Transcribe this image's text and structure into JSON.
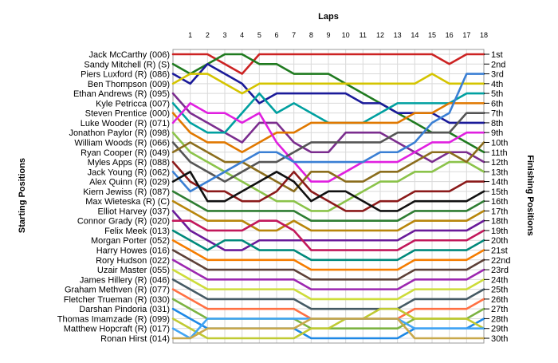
{
  "chart_data": {
    "type": "line",
    "title": "",
    "xlabel": "Laps",
    "ylabel_left": "Starting Positions",
    "ylabel_right": "Finishing Positions",
    "laps": [
      0,
      1,
      2,
      3,
      4,
      5,
      6,
      7,
      8,
      9,
      10,
      11,
      12,
      13,
      14,
      15,
      16,
      17,
      18
    ],
    "lap_tick_labels": [
      "1",
      "2",
      "3",
      "4",
      "5",
      "6",
      "7",
      "8",
      "9",
      "10",
      "11",
      "12",
      "13",
      "14",
      "15",
      "16",
      "17",
      "18"
    ],
    "position_range": [
      1,
      30
    ],
    "finishing_labels": [
      "1st",
      "2nd",
      "3rd",
      "4th",
      "5th",
      "6th",
      "7th",
      "8th",
      "9th",
      "10th",
      "11th",
      "12th",
      "13th",
      "14th",
      "15th",
      "16th",
      "17th",
      "18th",
      "19th",
      "20th",
      "21st",
      "22nd",
      "23rd",
      "24th",
      "25th",
      "26th",
      "27th",
      "28th",
      "29th",
      "30th"
    ],
    "grid": true,
    "series": [
      {
        "name": "Jack McCarthy (006)",
        "color": "#cc2222",
        "values": [
          1,
          1,
          1,
          2,
          3,
          1,
          1,
          1,
          1,
          1,
          1,
          1,
          1,
          1,
          1,
          1,
          2,
          1,
          1
        ]
      },
      {
        "name": "Sandy Mitchell (R) (S)",
        "color": "#1f7a1f",
        "values": [
          2,
          3,
          2,
          1,
          1,
          2,
          2,
          3,
          3,
          3,
          4,
          5,
          6,
          7,
          8,
          9,
          9,
          10,
          11
        ]
      },
      {
        "name": "Piers Luxford (R) (086)",
        "color": "#1a1a99",
        "values": [
          3,
          4,
          2,
          3,
          4,
          6,
          5,
          5,
          5,
          5,
          5,
          6,
          6,
          7,
          7,
          7,
          8,
          8,
          8
        ]
      },
      {
        "name": "Ben Thompson (009)",
        "color": "#d4c400",
        "values": [
          4,
          3,
          3,
          4,
          5,
          4,
          4,
          4,
          4,
          4,
          4,
          4,
          4,
          4,
          4,
          3,
          4,
          4,
          4
        ]
      },
      {
        "name": "Ethan Andrews (R) (095)",
        "color": "#7b2d8e",
        "values": [
          5,
          7,
          8,
          9,
          10,
          8,
          8,
          10,
          11,
          11,
          9,
          9,
          9,
          10,
          11,
          12,
          11,
          11,
          12
        ]
      },
      {
        "name": "Kyle Petricca (007)",
        "color": "#00a0a0",
        "values": [
          6,
          8,
          9,
          9,
          7,
          5,
          7,
          6,
          7,
          8,
          8,
          8,
          7,
          6,
          6,
          6,
          6,
          5,
          5
        ]
      },
      {
        "name": "Steven Prentice (000)",
        "color": "#e07800",
        "values": [
          7,
          9,
          10,
          10,
          11,
          10,
          9,
          9,
          8,
          8,
          8,
          8,
          8,
          8,
          7,
          7,
          6,
          6,
          6
        ]
      },
      {
        "name": "Luke Wooder (R) (071)",
        "color": "#e020e0",
        "values": [
          8,
          6,
          7,
          7,
          8,
          7,
          10,
          12,
          14,
          14,
          13,
          12,
          12,
          12,
          11,
          10,
          10,
          9,
          9
        ]
      },
      {
        "name": "Jonathon Paylor (R) (098)",
        "color": "#8bc34a",
        "values": [
          9,
          11,
          12,
          13,
          14,
          15,
          16,
          16,
          17,
          17,
          16,
          15,
          14,
          14,
          13,
          13,
          12,
          12,
          13
        ]
      },
      {
        "name": "William Woods (R) (066)",
        "color": "#555555",
        "values": [
          10,
          12,
          13,
          14,
          13,
          12,
          12,
          11,
          10,
          10,
          10,
          10,
          10,
          9,
          9,
          9,
          9,
          7,
          7
        ]
      },
      {
        "name": "Ryan Cooper (R) (049)",
        "color": "#8b6d1c",
        "values": [
          11,
          10,
          11,
          12,
          12,
          13,
          14,
          15,
          13,
          13,
          14,
          14,
          13,
          13,
          12,
          11,
          11,
          12,
          10
        ]
      },
      {
        "name": "Myles Apps (R) (088)",
        "color": "#8b1a1a",
        "values": [
          12,
          14,
          15,
          15,
          16,
          16,
          15,
          13,
          15,
          16,
          17,
          17,
          16,
          16,
          15,
          15,
          15,
          14,
          14
        ]
      },
      {
        "name": "Jack Young (R) (062)",
        "color": "#3a7fd4",
        "values": [
          13,
          15,
          14,
          13,
          12,
          11,
          11,
          12,
          12,
          12,
          12,
          12,
          11,
          11,
          10,
          8,
          7,
          3,
          3
        ]
      },
      {
        "name": "Alex Quinn (R) (029)",
        "color": "#111111",
        "values": [
          14,
          13,
          16,
          16,
          15,
          14,
          13,
          14,
          16,
          15,
          15,
          16,
          17,
          17,
          16,
          16,
          16,
          16,
          15
        ]
      },
      {
        "name": "Kiern Jewiss (R) (087)",
        "color": "#2e7d32",
        "values": [
          15,
          16,
          17,
          17,
          17,
          17,
          17,
          17,
          18,
          18,
          18,
          18,
          18,
          18,
          17,
          17,
          17,
          17,
          16
        ]
      },
      {
        "name": "Max Wieteska (R) (C)",
        "color": "#b8860b",
        "values": [
          16,
          17,
          18,
          18,
          18,
          19,
          19,
          18,
          19,
          19,
          19,
          19,
          19,
          19,
          18,
          18,
          18,
          18,
          17
        ]
      },
      {
        "name": "Elliot Harvey (037)",
        "color": "#6a1b9a",
        "values": [
          17,
          19,
          20,
          21,
          21,
          20,
          20,
          20,
          20,
          20,
          20,
          20,
          20,
          20,
          19,
          19,
          19,
          19,
          18
        ]
      },
      {
        "name": "Connor Grady (R) (020)",
        "color": "#c2185b",
        "values": [
          18,
          18,
          19,
          19,
          19,
          18,
          18,
          19,
          21,
          21,
          21,
          21,
          21,
          21,
          20,
          20,
          20,
          20,
          19
        ]
      },
      {
        "name": "Felix Meek (013)",
        "color": "#00897b",
        "values": [
          19,
          20,
          21,
          20,
          20,
          21,
          21,
          21,
          22,
          22,
          22,
          22,
          22,
          22,
          21,
          21,
          21,
          21,
          20
        ]
      },
      {
        "name": "Morgan Porter (052)",
        "color": "#f57c00",
        "values": [
          20,
          21,
          22,
          22,
          22,
          22,
          22,
          22,
          23,
          23,
          23,
          23,
          23,
          23,
          22,
          22,
          22,
          22,
          21
        ]
      },
      {
        "name": "Harry Howes (016)",
        "color": "#5d4037",
        "values": [
          21,
          22,
          23,
          23,
          23,
          23,
          23,
          23,
          24,
          24,
          24,
          24,
          24,
          24,
          23,
          23,
          23,
          23,
          22
        ]
      },
      {
        "name": "Rory Hudson (022)",
        "color": "#9c27b0",
        "values": [
          22,
          23,
          24,
          24,
          24,
          24,
          24,
          24,
          25,
          25,
          25,
          25,
          25,
          25,
          24,
          24,
          24,
          24,
          23
        ]
      },
      {
        "name": "Uzair Master (055)",
        "color": "#cddc39",
        "values": [
          23,
          24,
          25,
          25,
          25,
          25,
          25,
          25,
          26,
          26,
          26,
          26,
          26,
          26,
          25,
          25,
          25,
          25,
          24
        ]
      },
      {
        "name": "James Hillery (R) (046)",
        "color": "#455a64",
        "values": [
          24,
          25,
          26,
          26,
          26,
          26,
          26,
          26,
          27,
          27,
          27,
          27,
          27,
          27,
          26,
          26,
          26,
          26,
          25
        ]
      },
      {
        "name": "Graham Methven (R) (077)",
        "color": "#ff7043",
        "values": [
          25,
          26,
          27,
          27,
          27,
          27,
          27,
          27,
          28,
          28,
          28,
          28,
          28,
          28,
          27,
          27,
          27,
          27,
          26
        ]
      },
      {
        "name": "Fletcher Trueman (R) (030)",
        "color": "#7cb342",
        "values": [
          26,
          27,
          28,
          28,
          28,
          28,
          28,
          28,
          29,
          29,
          29,
          29,
          29,
          29,
          28,
          28,
          28,
          28,
          27
        ]
      },
      {
        "name": "Darshan Pindoria (031)",
        "color": "#1e88e5",
        "values": [
          27,
          28,
          29,
          29,
          29,
          29,
          29,
          29,
          30,
          30,
          30,
          30,
          30,
          30,
          29,
          29,
          29,
          29,
          28
        ]
      },
      {
        "name": "Thomas Imamzade (R) (099)",
        "color": "#c0ca33",
        "values": [
          28,
          29,
          30,
          30,
          30,
          30,
          30,
          30,
          29,
          29,
          28,
          28,
          27,
          27,
          28,
          28,
          28,
          28,
          29
        ]
      },
      {
        "name": "Matthew Hopcraft (R) (017)",
        "color": "#42a5f5",
        "values": [
          29,
          30,
          28,
          28,
          28,
          28,
          28,
          28,
          28,
          28,
          28,
          28,
          28,
          28,
          29,
          29,
          29,
          29,
          29
        ]
      },
      {
        "name": "Ronan Hirst (014)",
        "color": "#c8a84b",
        "values": [
          30,
          30,
          29,
          29,
          29,
          29,
          29,
          29,
          28,
          28,
          28,
          28,
          28,
          28,
          30,
          30,
          30,
          30,
          30
        ]
      }
    ]
  }
}
